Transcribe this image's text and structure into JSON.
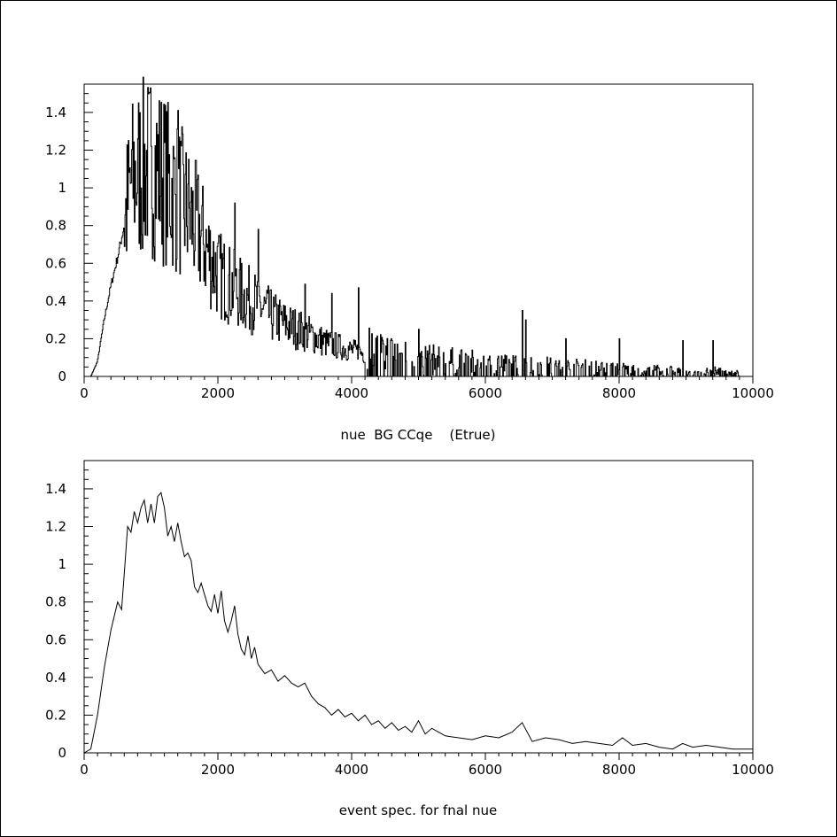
{
  "chart_data": [
    {
      "type": "line",
      "style": "histogram",
      "xlabel": "nue  BG CCqe    (Etrue)",
      "xlim": [
        0,
        10000
      ],
      "ylim": [
        0,
        1.55
      ],
      "xticks": [
        0,
        2000,
        4000,
        6000,
        8000,
        10000
      ],
      "xtick_labels": [
        "0",
        "2000",
        "4000",
        "6000",
        "8000",
        "10000"
      ],
      "yticks": [
        0,
        0.2,
        0.4,
        0.6,
        0.8,
        1,
        1.2,
        1.4
      ],
      "ytick_labels": [
        "0",
        "0.2",
        "0.4",
        "0.6",
        "0.8",
        "1",
        "1.2",
        "1.4"
      ],
      "grid": false,
      "x": [
        0,
        100,
        200,
        300,
        400,
        500,
        600,
        700,
        800,
        900,
        1000,
        1100,
        1200,
        1300,
        1400,
        1500,
        1600,
        1700,
        1800,
        1900,
        2000,
        2200,
        2400,
        2600,
        2800,
        3000,
        3200,
        3400,
        3600,
        3800,
        4000,
        4200,
        4400,
        4600,
        4800,
        5000,
        5500,
        6000,
        6500,
        7000,
        7500,
        8000,
        8500,
        9000,
        9500,
        9800
      ],
      "y": [
        0,
        0,
        0.08,
        0.3,
        0.48,
        0.63,
        0.8,
        1.02,
        1.08,
        1.1,
        1.12,
        1.1,
        1.05,
        1.0,
        0.95,
        0.9,
        0.83,
        0.78,
        0.7,
        0.62,
        0.55,
        0.48,
        0.42,
        0.38,
        0.32,
        0.28,
        0.25,
        0.22,
        0.18,
        0.16,
        0.14,
        0.12,
        0.1,
        0.09,
        0.08,
        0.07,
        0.06,
        0.05,
        0.045,
        0.04,
        0.035,
        0.03,
        0.025,
        0.02,
        0.02,
        0.015
      ],
      "spikes": [
        [
          800,
          1.26
        ],
        [
          1000,
          1.22
        ],
        [
          1200,
          1.24
        ],
        [
          1400,
          1.41
        ],
        [
          1550,
          1.02
        ],
        [
          2250,
          0.92
        ],
        [
          2600,
          0.78
        ],
        [
          3300,
          0.49
        ],
        [
          3700,
          0.44
        ],
        [
          4100,
          0.47
        ],
        [
          5000,
          0.25
        ],
        [
          6550,
          0.35
        ],
        [
          6600,
          0.3
        ],
        [
          7200,
          0.2
        ],
        [
          8000,
          0.2
        ],
        [
          8950,
          0.19
        ],
        [
          9400,
          0.19
        ]
      ]
    },
    {
      "type": "line",
      "xlabel": "event spec. for fnal nue",
      "xlim": [
        0,
        10000
      ],
      "ylim": [
        0,
        1.55
      ],
      "xticks": [
        0,
        2000,
        4000,
        6000,
        8000,
        10000
      ],
      "xtick_labels": [
        "0",
        "2000",
        "4000",
        "6000",
        "8000",
        "10000"
      ],
      "yticks": [
        0,
        0.2,
        0.4,
        0.6,
        0.8,
        1,
        1.2,
        1.4
      ],
      "ytick_labels": [
        "0",
        "0.2",
        "0.4",
        "0.6",
        "0.8",
        "1",
        "1.2",
        "1.4"
      ],
      "grid": false,
      "x": [
        0,
        100,
        200,
        300,
        400,
        500,
        560,
        600,
        650,
        700,
        750,
        800,
        850,
        900,
        950,
        1000,
        1050,
        1100,
        1150,
        1200,
        1250,
        1300,
        1350,
        1400,
        1450,
        1500,
        1550,
        1600,
        1650,
        1700,
        1750,
        1800,
        1850,
        1900,
        1950,
        2000,
        2050,
        2100,
        2150,
        2200,
        2250,
        2300,
        2350,
        2400,
        2450,
        2500,
        2550,
        2600,
        2700,
        2800,
        2900,
        3000,
        3100,
        3200,
        3300,
        3400,
        3500,
        3600,
        3700,
        3800,
        3900,
        4000,
        4100,
        4200,
        4300,
        4400,
        4500,
        4600,
        4700,
        4800,
        4900,
        5000,
        5100,
        5200,
        5400,
        5600,
        5800,
        6000,
        6200,
        6400,
        6550,
        6700,
        6900,
        7100,
        7300,
        7500,
        7700,
        7900,
        8050,
        8200,
        8400,
        8600,
        8800,
        8950,
        9100,
        9300,
        9500,
        9700,
        10000
      ],
      "y": [
        0,
        0.02,
        0.2,
        0.45,
        0.65,
        0.8,
        0.76,
        0.95,
        1.2,
        1.17,
        1.28,
        1.22,
        1.3,
        1.34,
        1.22,
        1.32,
        1.22,
        1.36,
        1.38,
        1.3,
        1.15,
        1.2,
        1.12,
        1.22,
        1.12,
        1.04,
        1.06,
        1.02,
        0.88,
        0.85,
        0.9,
        0.84,
        0.78,
        0.75,
        0.84,
        0.74,
        0.86,
        0.7,
        0.64,
        0.7,
        0.78,
        0.63,
        0.55,
        0.52,
        0.62,
        0.5,
        0.56,
        0.47,
        0.42,
        0.44,
        0.38,
        0.41,
        0.37,
        0.35,
        0.37,
        0.3,
        0.26,
        0.24,
        0.2,
        0.23,
        0.19,
        0.21,
        0.17,
        0.2,
        0.15,
        0.17,
        0.13,
        0.16,
        0.12,
        0.14,
        0.11,
        0.17,
        0.1,
        0.13,
        0.09,
        0.08,
        0.07,
        0.09,
        0.08,
        0.11,
        0.16,
        0.06,
        0.08,
        0.07,
        0.05,
        0.06,
        0.05,
        0.04,
        0.08,
        0.04,
        0.05,
        0.03,
        0.02,
        0.05,
        0.03,
        0.04,
        0.03,
        0.02,
        0.02
      ]
    }
  ]
}
